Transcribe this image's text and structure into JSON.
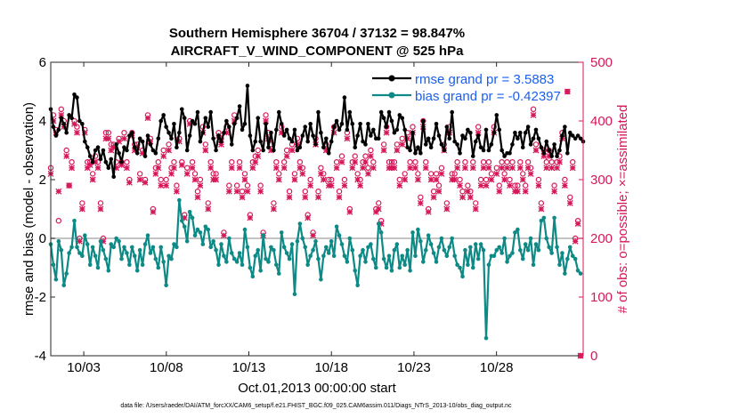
{
  "chart_data": {
    "type": "line",
    "title": "Southern Hemisphere 36704 / 37132 = 98.847%",
    "subtitle": "AIRCRAFT_V_WIND_COMPONENT @ 525 hPa",
    "xlabel": "Oct.01,2013 00:00:00 start",
    "ylabel": "rmse and bias (model - observation)",
    "y2label": "# of obs: o=possible; ×=assimilated",
    "footer": "data file: /Users/raeder/DAI/ATM_forcXX/CAM6_setup/f.e21.FHIST_BGC.f09_025.CAM6assim.011/Diags_NTrS_2013-10/obs_diag_output.nc",
    "xlim": [
      1,
      33.25
    ],
    "ylim": [
      -4,
      6
    ],
    "y2lim": [
      0,
      500
    ],
    "yticks": [
      "6",
      "4",
      "2",
      "0",
      "-2",
      "-4"
    ],
    "y2ticks": [
      "500",
      "400",
      "300",
      "200",
      "100",
      "0"
    ],
    "xticks": [
      {
        "x": 3,
        "label": "10/03"
      },
      {
        "x": 8,
        "label": "10/08"
      },
      {
        "x": 13,
        "label": "10/13"
      },
      {
        "x": 18,
        "label": "10/18"
      },
      {
        "x": 23,
        "label": "10/23"
      },
      {
        "x": 28,
        "label": "10/28"
      }
    ],
    "colors": {
      "rmse": "#000000",
      "bias": "#0e8a86",
      "count": "#d6185a",
      "zero": "#b0b0b0",
      "legend": "#1a5ff0"
    },
    "series": [
      {
        "name": "rmse grand pr = 3.5883",
        "axis": "left",
        "values": [
          4.4,
          3.8,
          3.5,
          3.7,
          4.1,
          3.9,
          3.6,
          4.2,
          4.1,
          4.9,
          4.8,
          4.0,
          3.9,
          3.3,
          3.1,
          2.8,
          2.6,
          3.0,
          3.1,
          2.7,
          3.0,
          2.6,
          2.4,
          2.7,
          2.1,
          3.2,
          2.9,
          2.6,
          3.1,
          3.0,
          3.5,
          3.6,
          3.1,
          2.9,
          3.4,
          3.3,
          2.8,
          3.5,
          3.2,
          3.0,
          2.9,
          3.4,
          4.0,
          4.2,
          3.8,
          3.6,
          3.4,
          3.9,
          3.1,
          3.6,
          4.4,
          4.1,
          3.0,
          3.5,
          4.0,
          3.9,
          4.3,
          3.3,
          3.6,
          4.1,
          3.8,
          4.3,
          3.4,
          3.0,
          3.5,
          3.3,
          3.6,
          4.0,
          3.8,
          3.2,
          3.9,
          4.1,
          4.5,
          3.7,
          3.9,
          5.2,
          3.5,
          3.0,
          3.3,
          4.1,
          3.3,
          3.0,
          3.9,
          3.1,
          3.6,
          3.0,
          3.7,
          4.3,
          3.9,
          3.5,
          3.7,
          3.4,
          3.3,
          3.7,
          3.0,
          3.1,
          3.5,
          3.8,
          3.3,
          3.9,
          3.5,
          3.2,
          4.3,
          3.6,
          3.1,
          3.4,
          2.9,
          3.3,
          3.8,
          4.0,
          3.7,
          3.9,
          4.8,
          3.7,
          4.3,
          3.9,
          3.1,
          3.5,
          3.9,
          3.3,
          3.2,
          3.9,
          3.5,
          3.7,
          3.4,
          3.4,
          4.3,
          4.1,
          3.8,
          4.3,
          4.0,
          3.6,
          3.7,
          4.2,
          4.1,
          3.7,
          3.1,
          3.0,
          3.6,
          2.9,
          3.1,
          2.9,
          4.0,
          3.2,
          3.4,
          3.1,
          3.4,
          3.9,
          3.5,
          3.2,
          3.0,
          3.8,
          3.4,
          4.3,
          3.3,
          3.2,
          2.9,
          3.5,
          3.4,
          3.7,
          3.6,
          2.8,
          3.3,
          3.5,
          3.1,
          3.0,
          3.7,
          3.0,
          3.2,
          3.6,
          4.2,
          3.7,
          3.0,
          2.8,
          2.9,
          2.9,
          3.2,
          3.6,
          3.4,
          3.6,
          3.1,
          3.6,
          3.8,
          3.2,
          3.4,
          3.7,
          3.4,
          3.1,
          2.9,
          3.3,
          3.0,
          2.8,
          3.2,
          2.8,
          3.0,
          3.5,
          3.8,
          2.9,
          3.6,
          3.5,
          3.4,
          3.5,
          3.4,
          3.3
        ]
      },
      {
        "name": "bias grand pr = -0.42397",
        "axis": "left",
        "values": [
          -0.2,
          -0.9,
          -1.4,
          -0.1,
          -0.4,
          -1.6,
          -1.2,
          -0.5,
          -0.3,
          0.6,
          -0.3,
          -0.5,
          -0.6,
          0.1,
          -0.2,
          -0.9,
          -0.3,
          -0.6,
          -1.0,
          -0.1,
          -0.4,
          -0.7,
          -1.1,
          -0.2,
          -0.3,
          0.0,
          -0.1,
          -0.7,
          -0.3,
          -0.5,
          -0.9,
          -0.3,
          -0.6,
          -1.1,
          -0.4,
          -0.9,
          -0.2,
          0.1,
          -0.5,
          -0.3,
          -0.7,
          -1.0,
          -0.3,
          -0.8,
          -1.6,
          -0.6,
          -0.7,
          -0.2,
          -0.3,
          1.3,
          0.6,
          0.4,
          -0.1,
          0.9,
          0.7,
          0.1,
          0.3,
          0.2,
          -0.2,
          0.4,
          0.3,
          -0.3,
          -0.1,
          -0.4,
          -0.9,
          -0.2,
          -0.6,
          -0.8,
          0.0,
          -0.5,
          -0.7,
          -0.8,
          -0.5,
          -0.9,
          0.3,
          -0.3,
          -1.0,
          -1.3,
          -0.6,
          -0.4,
          -1.1,
          0.1,
          -0.7,
          -0.8,
          -0.3,
          -0.4,
          -0.9,
          -1.2,
          0.2,
          -0.3,
          -0.5,
          -0.7,
          -0.2,
          -1.9,
          -0.1,
          0.5,
          0.0,
          -0.3,
          -0.9,
          -0.6,
          -0.4,
          -0.1,
          -0.7,
          -1.4,
          -0.6,
          -0.3,
          -0.5,
          -0.1,
          -0.6,
          0.4,
          0.1,
          -0.2,
          -0.6,
          -0.8,
          0.0,
          -0.4,
          -1.1,
          -1.6,
          -0.6,
          -0.4,
          -0.8,
          -0.3,
          -0.2,
          -0.7,
          -1.0,
          0.5,
          0.2,
          -0.7,
          -1.0,
          -0.6,
          -1.1,
          -0.4,
          -0.2,
          -1.0,
          -0.6,
          -0.9,
          -0.4,
          -1.1,
          0.2,
          -0.6,
          0.3,
          -0.1,
          -0.8,
          -0.4,
          0.1,
          -0.2,
          -0.5,
          -0.8,
          -0.3,
          0.0,
          -0.4,
          -0.6,
          -0.3,
          0.0,
          -0.6,
          -0.9,
          -1.0,
          -1.3,
          -0.4,
          -0.9,
          -0.3,
          -1.0,
          -0.2,
          -0.7,
          -0.2,
          -0.4,
          -3.4,
          -0.9,
          -0.6,
          -0.6,
          -0.4,
          -0.3,
          -0.5,
          0.0,
          -0.8,
          -0.6,
          -0.5,
          0.2,
          0.3,
          -0.4,
          -0.7,
          -0.2,
          -0.4,
          0.0,
          -0.9,
          -0.2,
          -0.4,
          0.6,
          0.7,
          0.0,
          -0.3,
          -0.5,
          0.7,
          -0.3,
          -0.9,
          -0.5,
          -1.2,
          -0.7,
          -0.3,
          -0.6,
          -0.7,
          -1.1,
          -1.2
        ]
      },
      {
        "name": "possible",
        "axis": "right",
        "marker": "o",
        "values": [
          320,
          410,
          385,
          230,
          420,
          400,
          350,
          290,
          330,
          400,
          390,
          200,
          260,
          385,
          330,
          330,
          310,
          340,
          330,
          260,
          200,
          380,
          380,
          360,
          360,
          330,
          370,
          330,
          380,
          330,
          300,
          380,
          360,
          360,
          310,
          350,
          300,
          410,
          370,
          250,
          320,
          330,
          300,
          350,
          300,
          360,
          320,
          330,
          290,
          370,
          330,
          240,
          320,
          400,
          330,
          310,
          280,
          300,
          390,
          360,
          260,
          330,
          310,
          310,
          380,
          370,
          210,
          390,
          290,
          330,
          410,
          290,
          330,
          280,
          310,
          290,
          240,
          330,
          340,
          350,
          290,
          210,
          410,
          380,
          360,
          260,
          330,
          310,
          390,
          330,
          350,
          280,
          360,
          310,
          370,
          330,
          320,
          280,
          240,
          300,
          210,
          370,
          280,
          320,
          310,
          360,
          300,
          300,
          390,
          330,
          280,
          340,
          300,
          380,
          250,
          330,
          340,
          310,
          300,
          330,
          340,
          320,
          350,
          330,
          250,
          260,
          230,
          360,
          390,
          330,
          330,
          330,
          360,
          300,
          370,
          310,
          380,
          330,
          390,
          330,
          310,
          270,
          400,
          330,
          250,
          310,
          280,
          310,
          290,
          320,
          360,
          260,
          390,
          310,
          310,
          330,
          300,
          280,
          330,
          290,
          280,
          330,
          260,
          390,
          300,
          330,
          300,
          330,
          310,
          390,
          320,
          290,
          330,
          310,
          330,
          300,
          330,
          290,
          290,
          330,
          310,
          290,
          330,
          320,
          420,
          360,
          300,
          260,
          350,
          330,
          350,
          330,
          290,
          330,
          340,
          380,
          300,
          450,
          270,
          330,
          200,
          230,
          0
        ]
      },
      {
        "name": "assimilated",
        "axis": "right",
        "marker": "x",
        "values": [
          310,
          400,
          380,
          280,
          410,
          390,
          340,
          290,
          320,
          395,
          380,
          195,
          250,
          380,
          320,
          325,
          300,
          330,
          320,
          250,
          195,
          370,
          370,
          350,
          355,
          320,
          365,
          325,
          370,
          320,
          295,
          375,
          350,
          355,
          300,
          345,
          295,
          405,
          365,
          245,
          310,
          320,
          290,
          340,
          290,
          350,
          310,
          320,
          280,
          365,
          325,
          235,
          310,
          395,
          320,
          300,
          270,
          290,
          380,
          350,
          250,
          320,
          300,
          300,
          375,
          360,
          205,
          380,
          280,
          320,
          400,
          280,
          320,
          270,
          300,
          280,
          235,
          320,
          330,
          340,
          280,
          205,
          400,
          370,
          350,
          250,
          320,
          300,
          380,
          320,
          340,
          270,
          350,
          300,
          360,
          320,
          310,
          270,
          235,
          290,
          205,
          360,
          270,
          310,
          300,
          350,
          290,
          290,
          380,
          320,
          270,
          330,
          290,
          370,
          245,
          320,
          330,
          300,
          290,
          320,
          330,
          310,
          340,
          320,
          245,
          250,
          225,
          350,
          380,
          320,
          320,
          320,
          350,
          290,
          360,
          300,
          370,
          320,
          380,
          320,
          300,
          260,
          390,
          320,
          245,
          300,
          270,
          300,
          280,
          310,
          350,
          250,
          380,
          300,
          300,
          320,
          290,
          270,
          320,
          280,
          270,
          320,
          250,
          380,
          290,
          320,
          290,
          320,
          300,
          380,
          310,
          280,
          320,
          300,
          320,
          290,
          320,
          280,
          280,
          320,
          300,
          280,
          320,
          310,
          410,
          350,
          290,
          250,
          340,
          320,
          340,
          320,
          280,
          320,
          330,
          370,
          290,
          450,
          260,
          320,
          195,
          225,
          0
        ]
      }
    ]
  }
}
